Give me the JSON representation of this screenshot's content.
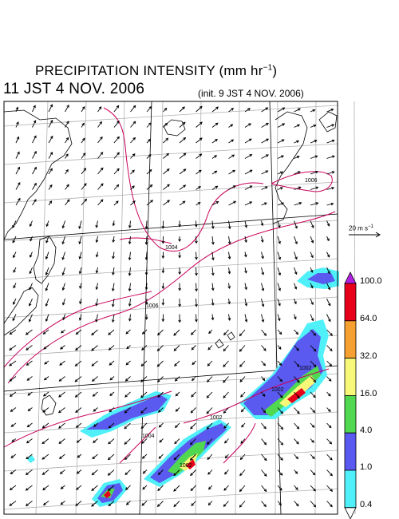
{
  "title": {
    "text": "PRECIPITATION INTENSITY (mm hr",
    "sup": "−1",
    "close": ")"
  },
  "valid_time": "11 JST 4 NOV. 2006",
  "init_time": "(init. 9 JST 4 NOV. 2006)",
  "wind_reference": {
    "base": "20 m s",
    "sup": "−1"
  },
  "colorbar": {
    "labels": [
      "100.0",
      "64.0",
      "32.0",
      "16.0",
      "4.0",
      "1.0",
      "0.4"
    ],
    "colors": [
      "#e8001a",
      "#f5a030",
      "#f8f878",
      "#50d850",
      "#5a5af0",
      "#50f0f8"
    ],
    "over_color": "#b020e0",
    "under_color": "#ffffff"
  },
  "isobar_labels": [
    "1006",
    "1004",
    "1006",
    "1002",
    "1002",
    "1004",
    "1002",
    "1002"
  ],
  "colors": {
    "isobar": "#c8005a",
    "grid": "#b0b0b0",
    "coast": "#000000"
  }
}
